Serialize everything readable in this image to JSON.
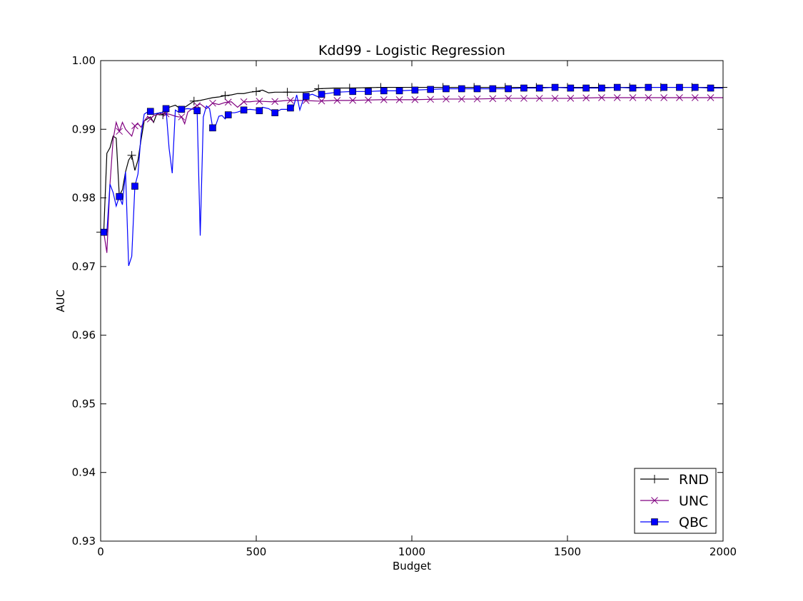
{
  "chart_data": {
    "type": "line",
    "title": "Kdd99 - Logistic Regression",
    "xlabel": "Budget",
    "ylabel": "AUC",
    "xlim": [
      0,
      2000
    ],
    "ylim": [
      0.93,
      1.0
    ],
    "xticks": [
      0,
      500,
      1000,
      1500,
      2000
    ],
    "xtick_labels": [
      "0",
      "500",
      "1000",
      "1500",
      "2000"
    ],
    "yticks": [
      0.93,
      0.94,
      0.95,
      0.96,
      0.97,
      0.98,
      0.99,
      1.0
    ],
    "ytick_labels": [
      "0.93",
      "0.94",
      "0.95",
      "0.96",
      "0.97",
      "0.98",
      "0.99",
      "1.00"
    ],
    "grid": false,
    "legend_position": "bottom-right",
    "series": [
      {
        "name": "RND",
        "color": "#000000",
        "marker": "plus",
        "x": [
          0,
          10,
          20,
          30,
          40,
          50,
          60,
          70,
          80,
          90,
          100,
          110,
          120,
          130,
          140,
          150,
          160,
          170,
          180,
          190,
          200,
          220,
          240,
          260,
          280,
          300,
          320,
          340,
          360,
          380,
          400,
          420,
          440,
          460,
          480,
          500,
          510,
          520,
          540,
          560,
          600,
          650,
          680,
          700,
          750,
          800,
          900,
          1000,
          1100,
          1200,
          1300,
          1400,
          1500,
          1600,
          1700,
          1800,
          1900,
          2000
        ],
        "y": [
          0.975,
          0.975,
          0.9865,
          0.9873,
          0.989,
          0.9887,
          0.9803,
          0.9812,
          0.9838,
          0.9855,
          0.9862,
          0.984,
          0.9855,
          0.9885,
          0.9912,
          0.9915,
          0.9918,
          0.991,
          0.9922,
          0.9924,
          0.9921,
          0.9932,
          0.9935,
          0.9929,
          0.9935,
          0.9941,
          0.9942,
          0.9944,
          0.9946,
          0.9947,
          0.9949,
          0.995,
          0.9952,
          0.9952,
          0.9954,
          0.9955,
          0.9956,
          0.9957,
          0.9953,
          0.9954,
          0.9954,
          0.9954,
          0.9955,
          0.9959,
          0.996,
          0.996,
          0.9961,
          0.9961,
          0.9961,
          0.9961,
          0.9961,
          0.9961,
          0.9961,
          0.9961,
          0.9961,
          0.9961,
          0.9961,
          0.9961
        ],
        "marker_x": [
          0,
          100,
          200,
          300,
          400,
          500,
          600,
          700,
          800,
          900,
          1000,
          1100,
          1200,
          1300,
          1400,
          1500,
          1600,
          1700,
          1800,
          1900,
          2000
        ]
      },
      {
        "name": "UNC",
        "color": "#800080",
        "marker": "x",
        "x": [
          0,
          10,
          20,
          30,
          40,
          50,
          60,
          70,
          80,
          90,
          100,
          110,
          120,
          130,
          140,
          150,
          160,
          170,
          180,
          190,
          200,
          220,
          240,
          250,
          260,
          270,
          280,
          300,
          320,
          340,
          360,
          380,
          400,
          420,
          440,
          460,
          480,
          500,
          550,
          600,
          650,
          700,
          750,
          800,
          900,
          1000,
          1100,
          1200,
          1300,
          1400,
          1500,
          1600,
          1700,
          1800,
          1900,
          2000
        ],
        "y": [
          0.975,
          0.975,
          0.972,
          0.982,
          0.9885,
          0.991,
          0.9897,
          0.991,
          0.99,
          0.9895,
          0.989,
          0.9905,
          0.9908,
          0.9903,
          0.9912,
          0.9918,
          0.9915,
          0.992,
          0.9921,
          0.9922,
          0.9923,
          0.9922,
          0.9919,
          0.9918,
          0.9918,
          0.9908,
          0.9925,
          0.9932,
          0.9937,
          0.993,
          0.9938,
          0.9936,
          0.9939,
          0.994,
          0.9932,
          0.994,
          0.994,
          0.9941,
          0.994,
          0.9942,
          0.9942,
          0.9941,
          0.9942,
          0.9942,
          0.9943,
          0.9943,
          0.9944,
          0.9944,
          0.9945,
          0.9945,
          0.9945,
          0.9946,
          0.9946,
          0.9946,
          0.9946,
          0.9946
        ],
        "marker_x": [
          10,
          60,
          110,
          160,
          210,
          260,
          310,
          360,
          410,
          460,
          510,
          560,
          610,
          660,
          710,
          760,
          810,
          860,
          910,
          960,
          1010,
          1060,
          1110,
          1160,
          1210,
          1260,
          1310,
          1360,
          1410,
          1460,
          1510,
          1560,
          1610,
          1660,
          1710,
          1760,
          1810,
          1860,
          1910,
          1960
        ]
      },
      {
        "name": "QBC",
        "color": "#0000ff",
        "marker": "square",
        "x": [
          0,
          10,
          20,
          30,
          40,
          50,
          60,
          70,
          80,
          90,
          100,
          110,
          120,
          130,
          140,
          150,
          160,
          170,
          180,
          190,
          200,
          210,
          220,
          230,
          240,
          250,
          260,
          280,
          300,
          310,
          320,
          330,
          340,
          350,
          360,
          370,
          380,
          390,
          400,
          410,
          420,
          430,
          440,
          460,
          480,
          500,
          510,
          520,
          540,
          560,
          580,
          600,
          610,
          620,
          630,
          640,
          650,
          660,
          680,
          700,
          710,
          760,
          810,
          860,
          910,
          960,
          1010,
          1060,
          1110,
          1160,
          1210,
          1260,
          1310,
          1360,
          1410,
          1460,
          1510,
          1560,
          1610,
          1660,
          1710,
          1760,
          1810,
          1860,
          1910,
          1960,
          2000
        ],
        "y": [
          0.975,
          0.975,
          0.975,
          0.982,
          0.9808,
          0.9788,
          0.9802,
          0.979,
          0.9838,
          0.9701,
          0.9715,
          0.9817,
          0.9835,
          0.9893,
          0.9922,
          0.9925,
          0.9926,
          0.9922,
          0.9923,
          0.9924,
          0.9925,
          0.993,
          0.9872,
          0.9836,
          0.9928,
          0.9925,
          0.9929,
          0.993,
          0.9929,
          0.9927,
          0.9745,
          0.9918,
          0.9934,
          0.993,
          0.9902,
          0.9906,
          0.9919,
          0.992,
          0.9915,
          0.9921,
          0.9924,
          0.9924,
          0.9925,
          0.9928,
          0.9929,
          0.9928,
          0.9927,
          0.9932,
          0.993,
          0.9924,
          0.9929,
          0.9929,
          0.9931,
          0.9933,
          0.995,
          0.9928,
          0.9942,
          0.9948,
          0.9951,
          0.9947,
          0.9951,
          0.9954,
          0.9955,
          0.9955,
          0.9956,
          0.9956,
          0.9957,
          0.9958,
          0.9959,
          0.9959,
          0.9959,
          0.9959,
          0.9959,
          0.996,
          0.996,
          0.9961,
          0.996,
          0.996,
          0.996,
          0.9961,
          0.996,
          0.9961,
          0.9961,
          0.9961,
          0.9961,
          0.996,
          0.996
        ],
        "marker_x": [
          10,
          60,
          110,
          160,
          210,
          260,
          310,
          360,
          410,
          460,
          510,
          560,
          610,
          660,
          710,
          760,
          810,
          860,
          910,
          960,
          1010,
          1060,
          1110,
          1160,
          1210,
          1260,
          1310,
          1360,
          1410,
          1460,
          1510,
          1560,
          1610,
          1660,
          1710,
          1760,
          1810,
          1860,
          1910,
          1960
        ]
      }
    ]
  }
}
